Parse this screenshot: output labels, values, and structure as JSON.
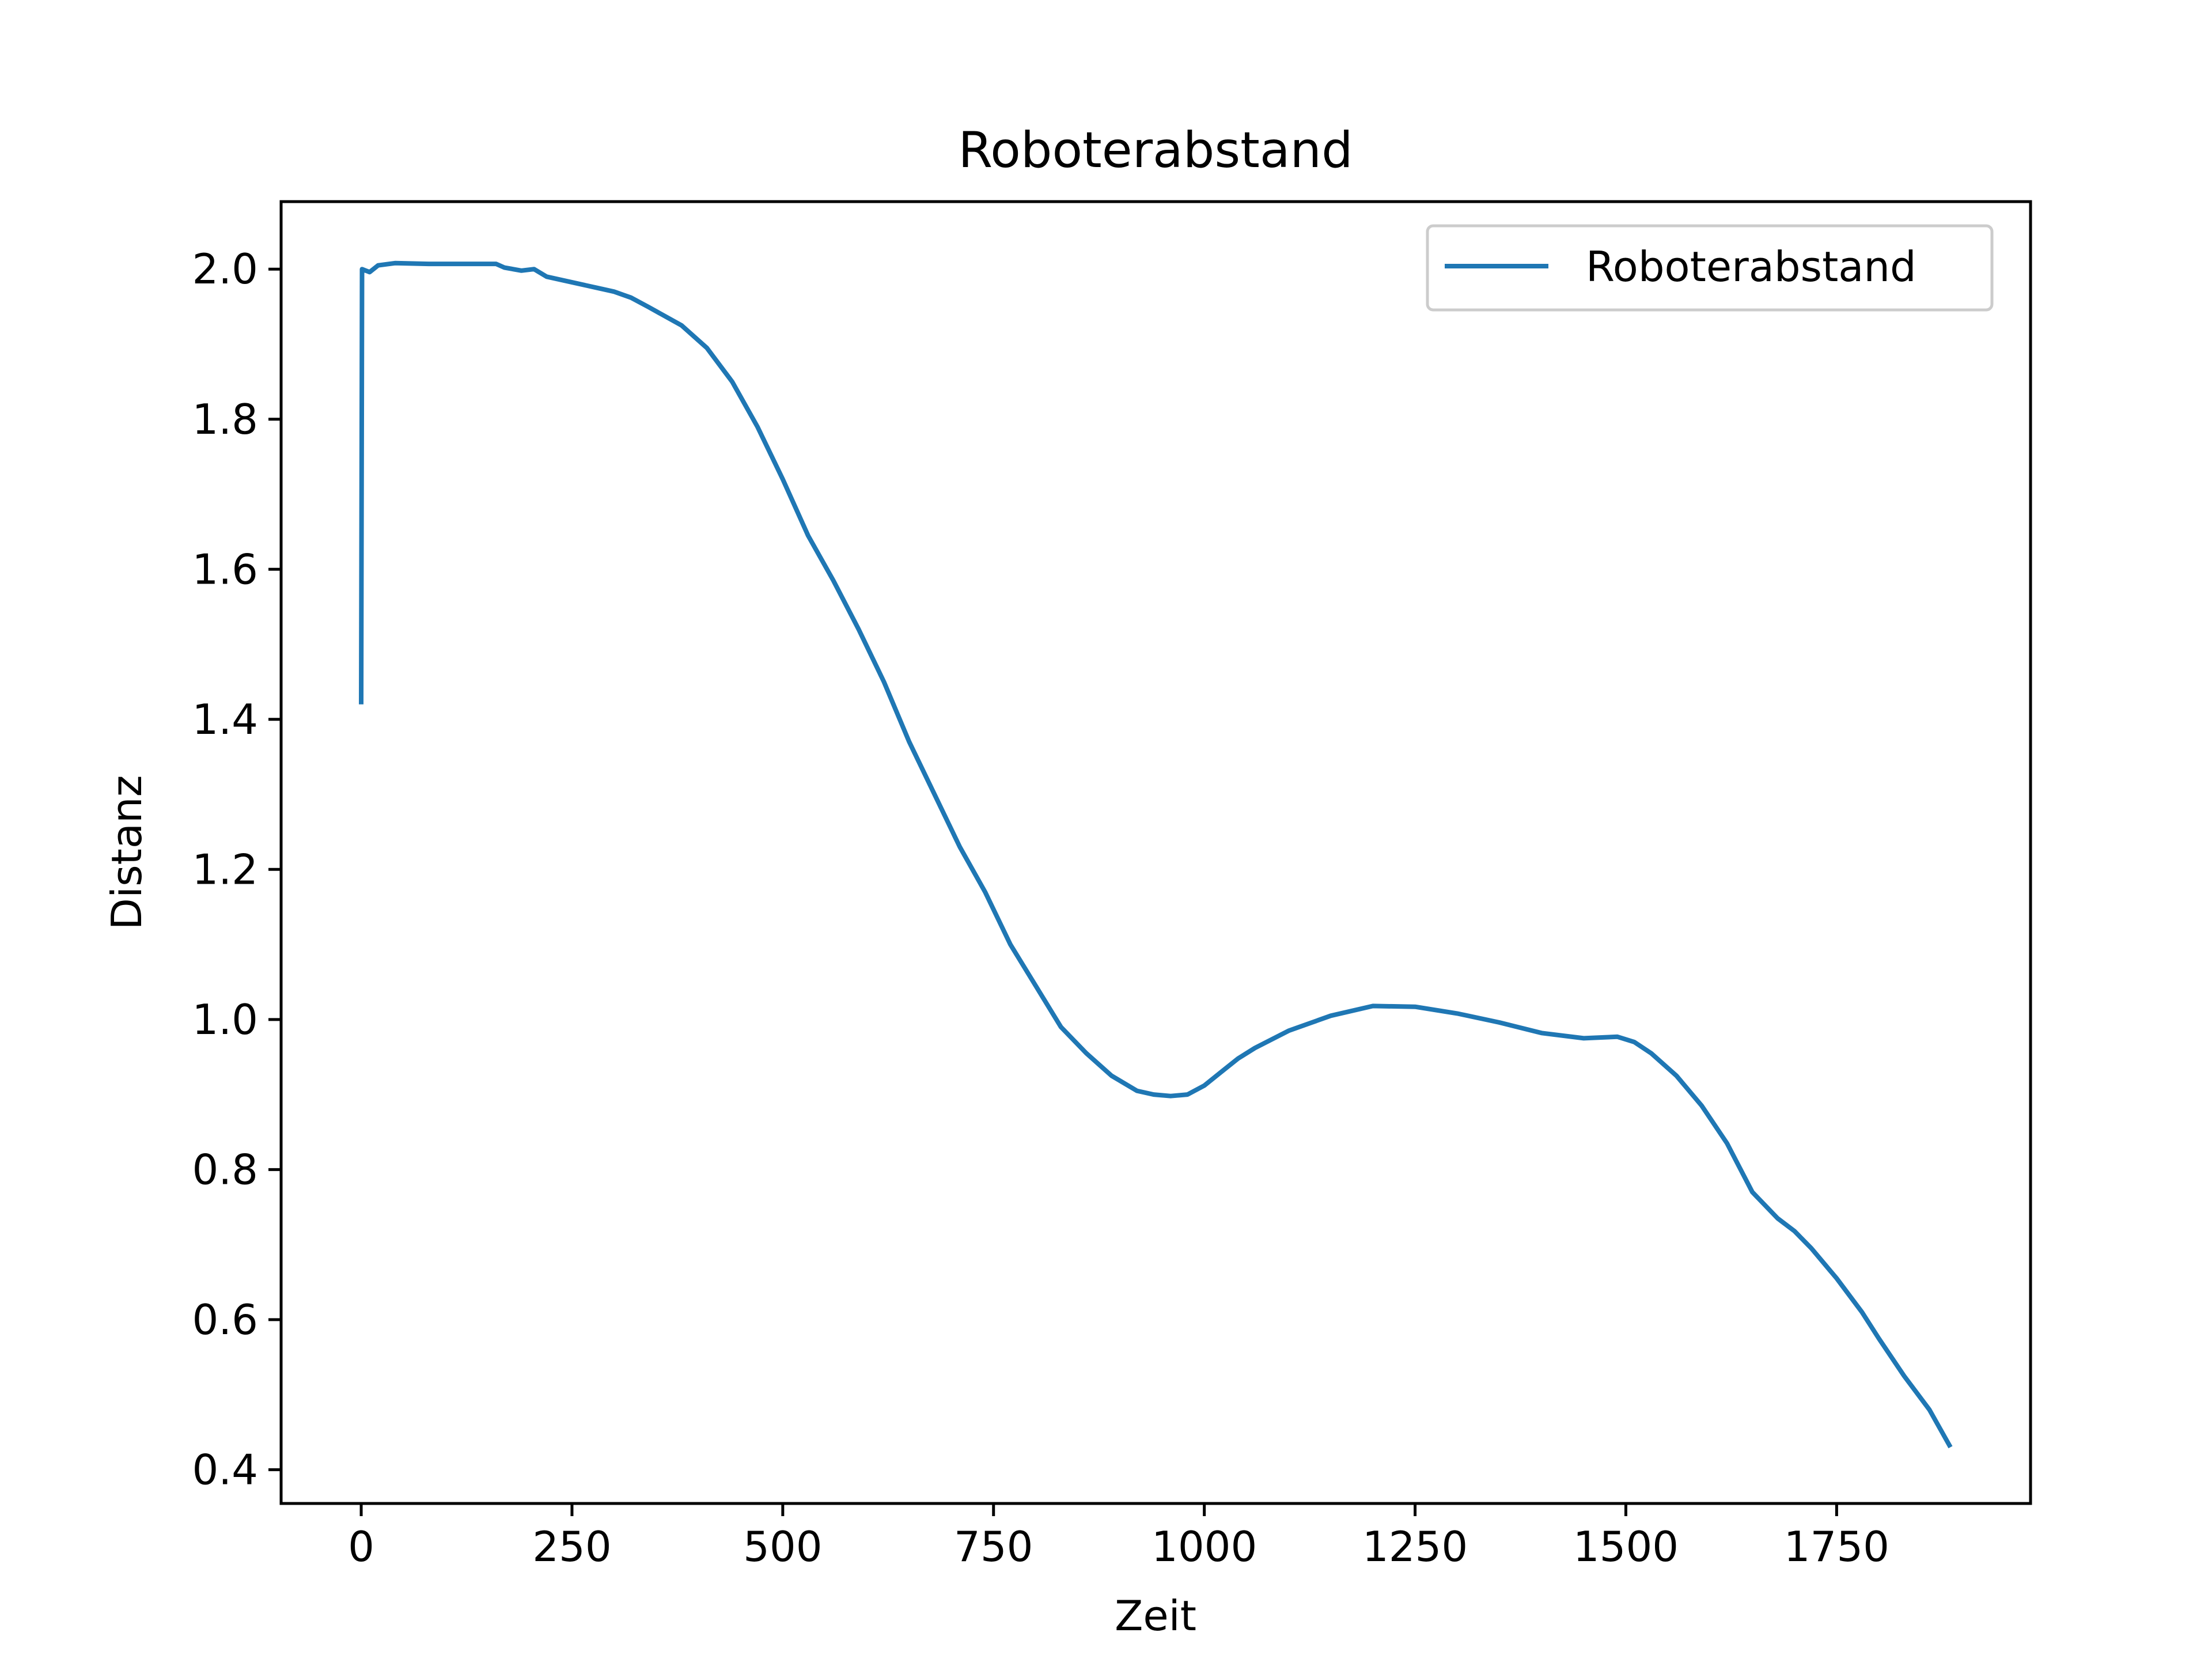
{
  "chart_data": {
    "type": "line",
    "title": "Roboterabstand",
    "xlabel": "Zeit",
    "ylabel": "Distanz",
    "xlim": [
      -95,
      1980
    ],
    "ylim": [
      0.355,
      2.09
    ],
    "xticks": [
      0,
      250,
      500,
      750,
      1000,
      1250,
      1500,
      1750
    ],
    "xtick_labels": [
      "0",
      "250",
      "500",
      "750",
      "1000",
      "1250",
      "1500",
      "1750"
    ],
    "yticks": [
      0.4,
      0.6,
      0.8,
      1.0,
      1.2,
      1.4,
      1.6,
      1.8,
      2.0
    ],
    "ytick_labels": [
      "0.4",
      "0.6",
      "0.8",
      "1.0",
      "1.2",
      "1.4",
      "1.6",
      "1.8",
      "2.0"
    ],
    "grid": false,
    "legend_position": "top-right",
    "colors": {
      "series": "#1f77b4",
      "axes": "#000000",
      "background": "#ffffff"
    },
    "series": [
      {
        "name": "Roboterabstand",
        "x": [
          0,
          1,
          10,
          20,
          40,
          80,
          120,
          160,
          170,
          190,
          205,
          220,
          240,
          280,
          300,
          320,
          340,
          380,
          410,
          440,
          470,
          500,
          530,
          560,
          590,
          620,
          650,
          680,
          710,
          740,
          770,
          800,
          830,
          860,
          890,
          920,
          940,
          960,
          980,
          1000,
          1020,
          1040,
          1060,
          1100,
          1150,
          1200,
          1250,
          1300,
          1350,
          1400,
          1450,
          1490,
          1510,
          1530,
          1560,
          1590,
          1620,
          1650,
          1680,
          1700,
          1720,
          1750,
          1780,
          1800,
          1830,
          1860,
          1885
        ],
        "y": [
          1.42,
          2.0,
          1.996,
          2.005,
          2.008,
          2.007,
          2.007,
          2.007,
          2.002,
          1.998,
          2.0,
          1.99,
          1.985,
          1.975,
          1.97,
          1.962,
          1.95,
          1.925,
          1.895,
          1.85,
          1.79,
          1.72,
          1.645,
          1.585,
          1.52,
          1.45,
          1.37,
          1.3,
          1.23,
          1.17,
          1.1,
          1.045,
          0.99,
          0.955,
          0.925,
          0.905,
          0.9,
          0.898,
          0.9,
          0.912,
          0.93,
          0.948,
          0.962,
          0.985,
          1.005,
          1.018,
          1.017,
          1.008,
          0.996,
          0.982,
          0.975,
          0.977,
          0.97,
          0.955,
          0.925,
          0.885,
          0.835,
          0.77,
          0.735,
          0.718,
          0.695,
          0.655,
          0.61,
          0.575,
          0.525,
          0.48,
          0.43
        ]
      }
    ]
  }
}
